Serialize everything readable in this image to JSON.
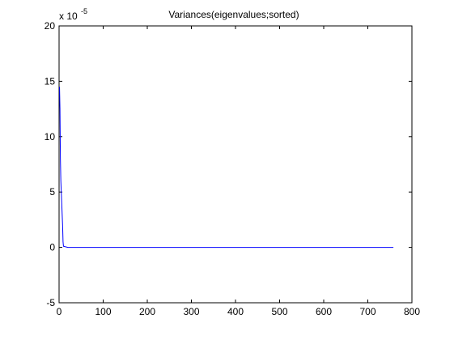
{
  "chart_data": {
    "type": "line",
    "title": "Variances(eigenvalues;sorted)",
    "xlabel": "",
    "ylabel": "",
    "y_exponent_base": "x 10",
    "y_exponent_power": "-5",
    "y_scale": 1e-05,
    "xlim": [
      0,
      800
    ],
    "ylim": [
      -5,
      20
    ],
    "x_ticks": [
      0,
      100,
      200,
      300,
      400,
      500,
      600,
      700,
      800
    ],
    "y_ticks": [
      -5,
      0,
      5,
      10,
      15,
      20
    ],
    "grid": false,
    "legend": "none",
    "series": [
      {
        "color": "#0000ff",
        "x": [
          1,
          2,
          3,
          4,
          5,
          6,
          7,
          8,
          9,
          10,
          20,
          50,
          100,
          200,
          300,
          400,
          500,
          600,
          700,
          758
        ],
        "y": [
          14.5,
          12.5,
          8,
          6,
          5,
          4,
          3,
          2,
          0.5,
          0.1,
          0,
          0,
          0,
          0,
          0,
          0,
          0,
          0,
          0,
          0
        ]
      }
    ]
  }
}
